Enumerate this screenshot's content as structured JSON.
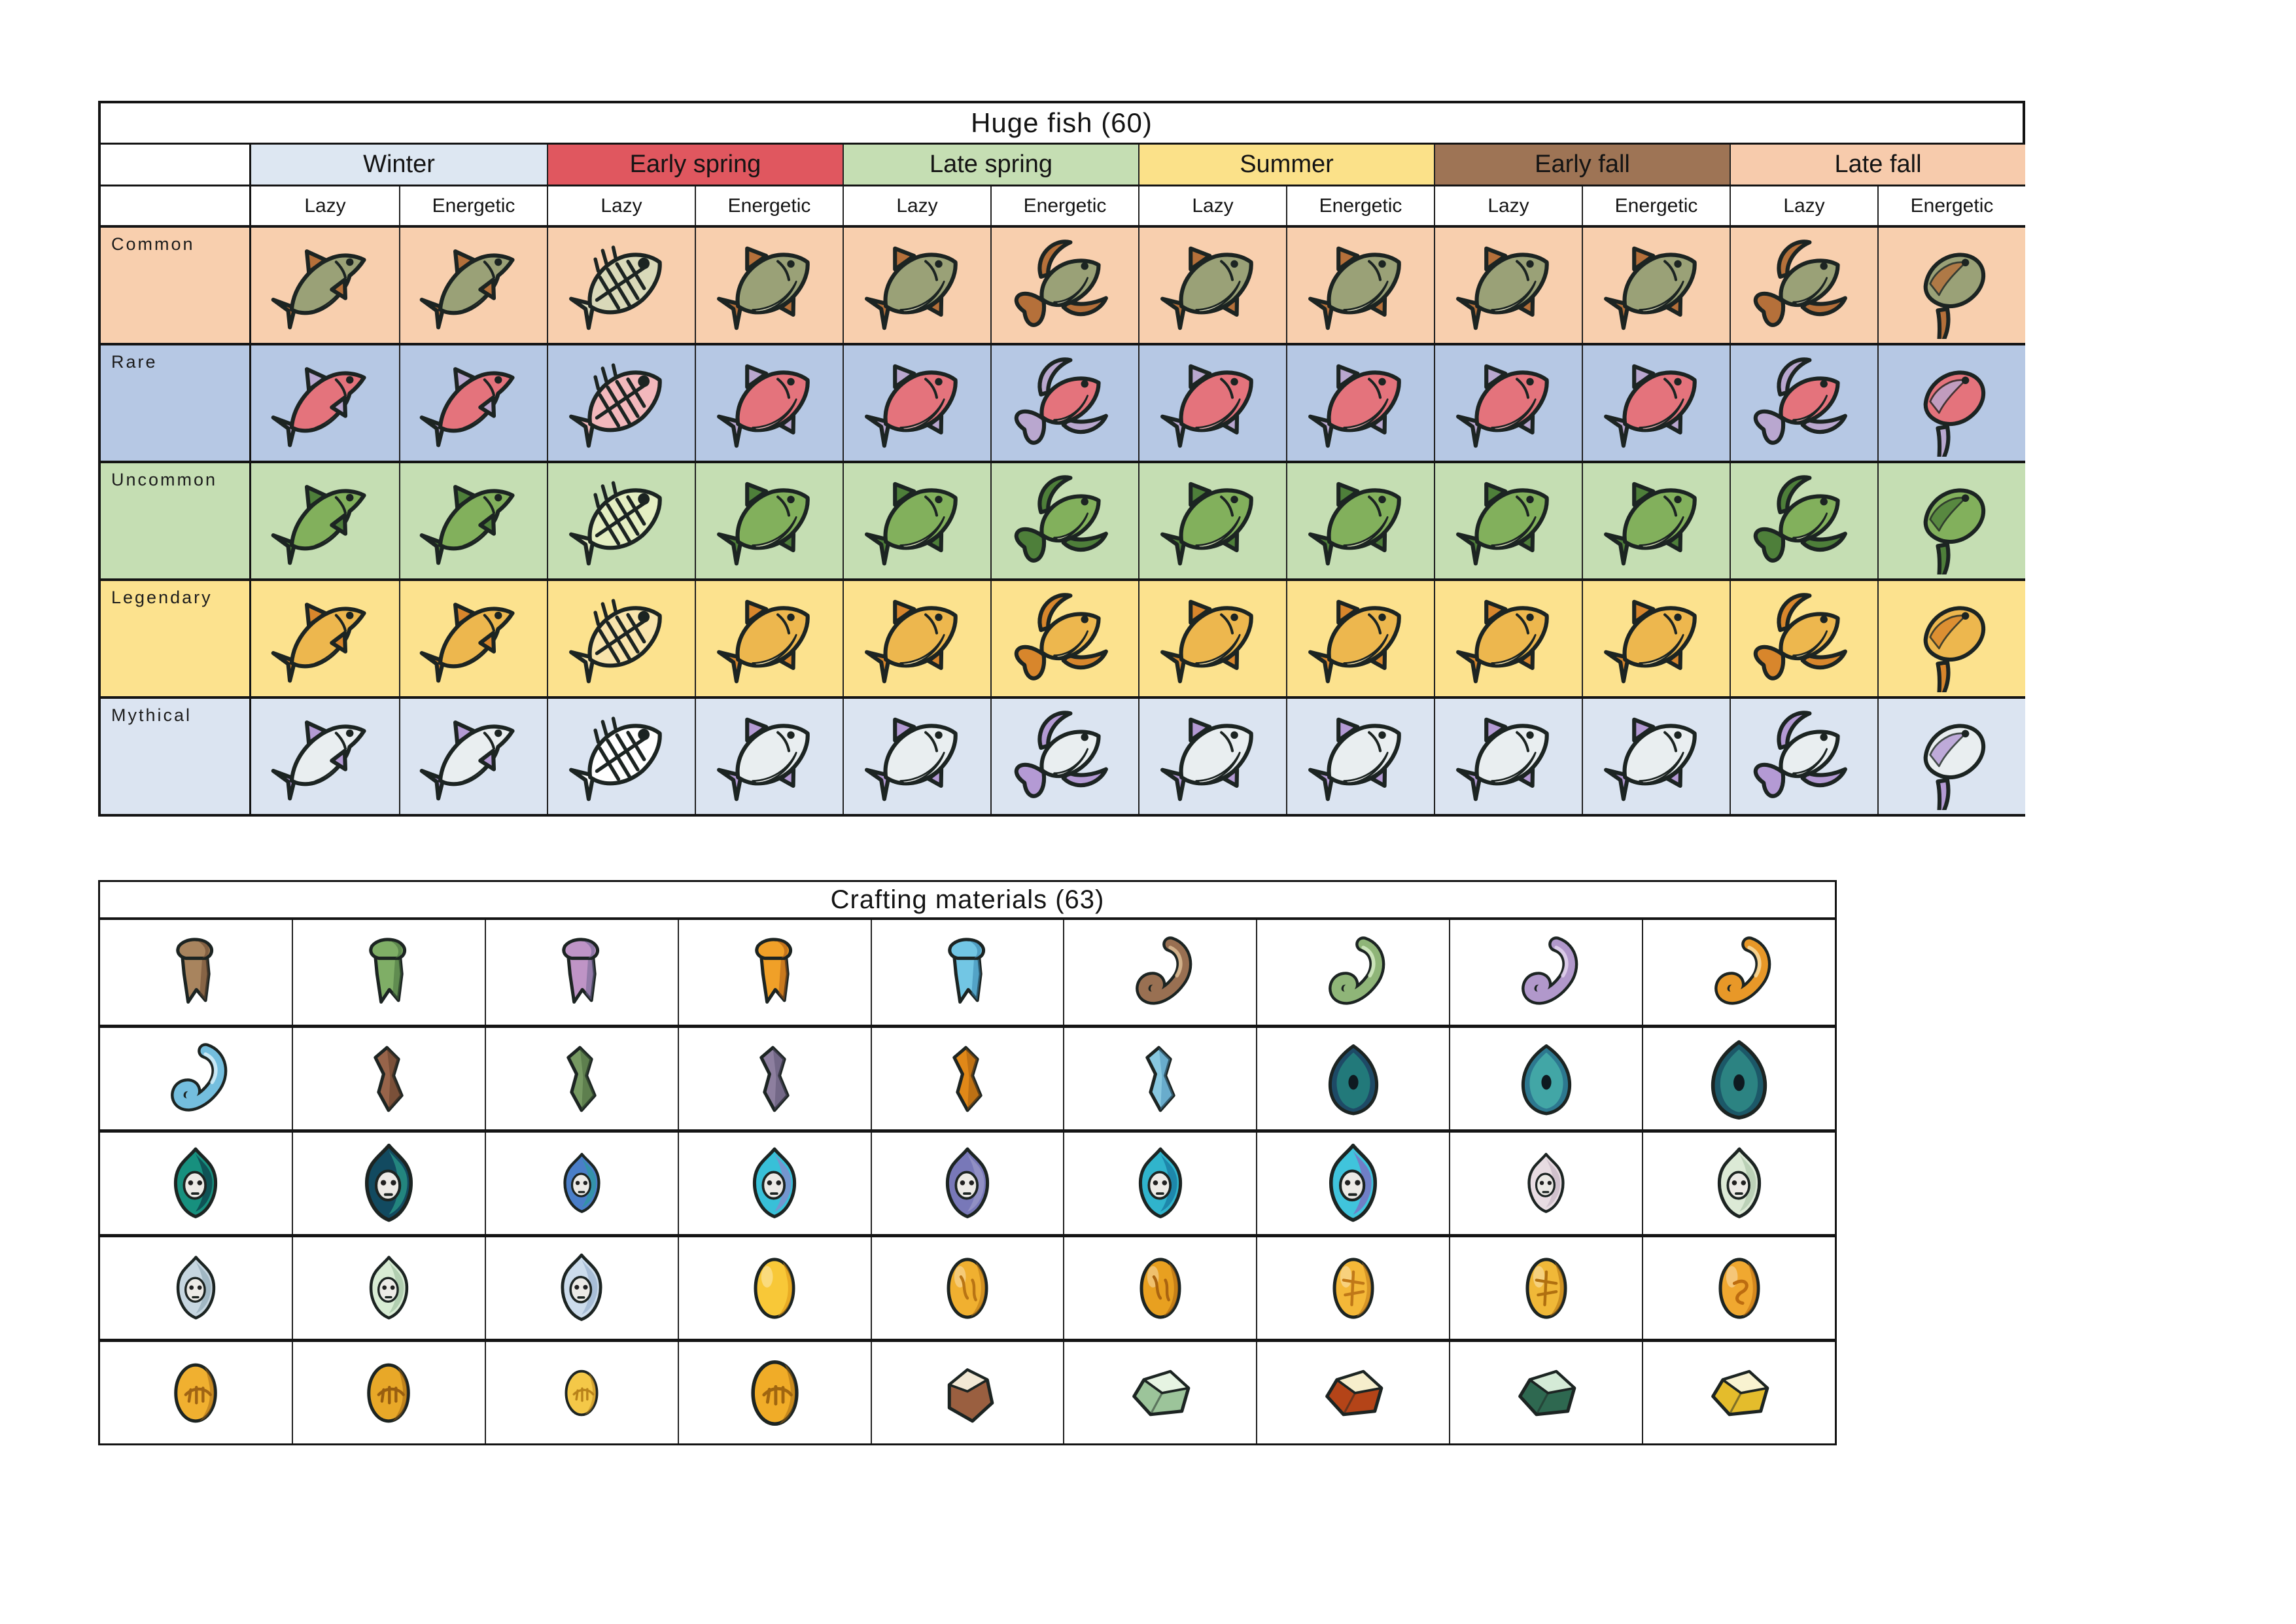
{
  "fish_table": {
    "title": "Huge fish (60)",
    "seasons": [
      {
        "label": "Winter",
        "color": "#dde7f2"
      },
      {
        "label": "Early spring",
        "color": "#e0575f"
      },
      {
        "label": "Late spring",
        "color": "#c5deb3"
      },
      {
        "label": "Summer",
        "color": "#fbe189"
      },
      {
        "label": "Early fall",
        "color": "#9e7455"
      },
      {
        "label": "Late fall",
        "color": "#f7cbac"
      }
    ],
    "trait_labels": [
      "Lazy",
      "Energetic"
    ],
    "column_fish_shapes": [
      "shark",
      "shark",
      "skeleton",
      "fish",
      "fish",
      "betta",
      "fish",
      "fish",
      "fish",
      "fish",
      "betta",
      "ray"
    ],
    "rarities": [
      {
        "label": "Common",
        "bg": "#f8cfae",
        "fish": {
          "body": "#9aa177",
          "fin": "#b5703a",
          "belly": "#d9d9b9"
        }
      },
      {
        "label": "Rare",
        "bg": "#b6c8e4",
        "fish": {
          "body": "#e4737c",
          "fin": "#b9a7cf",
          "belly": "#f2b8bc"
        }
      },
      {
        "label": "Uncommon",
        "bg": "#c5deb3",
        "fish": {
          "body": "#82b05c",
          "fin": "#4e7f3a",
          "belly": "#e4eec2"
        }
      },
      {
        "label": "Legendary",
        "bg": "#fce28e",
        "fish": {
          "body": "#edb74e",
          "fin": "#d8862c",
          "belly": "#f8e4ac"
        }
      },
      {
        "label": "Mythical",
        "bg": "#dbe4f1",
        "fish": {
          "body": "#e9eef0",
          "fin": "#b49ad4",
          "belly": "#ffffff"
        }
      }
    ]
  },
  "crafting_table": {
    "title": "Crafting materials (63)",
    "rows": [
      [
        {
          "type": "scroll",
          "name": "brown-scroll",
          "c1": "#a8845e",
          "c2": "#6b4a32"
        },
        {
          "type": "scroll",
          "name": "green-scroll",
          "c1": "#7fae66",
          "c2": "#47713e"
        },
        {
          "type": "scroll",
          "name": "purple-scroll",
          "c1": "#bf94c6",
          "c2": "#6e6490"
        },
        {
          "type": "scroll",
          "name": "orange-scroll",
          "c1": "#f0a028",
          "c2": "#aa5a16"
        },
        {
          "type": "scroll",
          "name": "blue-scroll",
          "c1": "#72c6e4",
          "c2": "#3a86ae"
        },
        {
          "type": "worm",
          "name": "brown-worm",
          "c1": "#997052",
          "c2": "#d8b890"
        },
        {
          "type": "worm",
          "name": "green-worm",
          "c1": "#8fb578",
          "c2": "#d0e8c0"
        },
        {
          "type": "worm",
          "name": "purple-worm",
          "c1": "#b198cb",
          "c2": "#e0d0ec"
        },
        {
          "type": "worm",
          "name": "orange-worm",
          "c1": "#e89828",
          "c2": "#f8d898"
        }
      ],
      [
        {
          "type": "worm",
          "name": "blue-worm",
          "c1": "#74bede",
          "c2": "#d0ecf8"
        },
        {
          "type": "hide",
          "name": "brown-hide",
          "c1": "#97644a",
          "c2": "#5e3c28"
        },
        {
          "type": "hide",
          "name": "green-hide",
          "c1": "#769962",
          "c2": "#46663a"
        },
        {
          "type": "hide",
          "name": "purple-hide",
          "c1": "#8d7f9f",
          "c2": "#5a5270"
        },
        {
          "type": "hide",
          "name": "orange-hide",
          "c1": "#e08818",
          "c2": "#9c5a10"
        },
        {
          "type": "hide",
          "name": "blue-hide",
          "c1": "#88c8e0",
          "c2": "#4a90b8"
        },
        {
          "type": "scale",
          "name": "navy-scale",
          "c1": "#1e4a66",
          "c2": "#27a08a"
        },
        {
          "type": "scale",
          "name": "teal-scale",
          "c1": "#2d7890",
          "c2": "#54ccb8"
        },
        {
          "type": "scale",
          "name": "deep-teal-scale",
          "c1": "#1c5868",
          "c2": "#3aa898",
          "s": 1.12
        }
      ],
      [
        {
          "type": "spirit",
          "name": "teal-spirit-scale",
          "c1": "#17907e",
          "c2": "#0d3f4a"
        },
        {
          "type": "spirit",
          "name": "navy-spirit-scale",
          "c1": "#124a60",
          "c2": "#2a9a88",
          "s": 1.1
        },
        {
          "type": "spirit",
          "name": "blue-spirit-scale",
          "c1": "#4a7ec8",
          "c2": "#2d9aa0",
          "s": 0.85
        },
        {
          "type": "spirit",
          "name": "cyan-spirit-scale",
          "c1": "#38c0d8",
          "c2": "#8888cc"
        },
        {
          "type": "spirit",
          "name": "violet-spirit-scale",
          "c1": "#7878b8",
          "c2": "#9a98c8"
        },
        {
          "type": "spirit",
          "name": "azure-spirit-scale",
          "c1": "#30b4cc",
          "c2": "#1878a0"
        },
        {
          "type": "spirit",
          "name": "purple-spirit-scale",
          "c1": "#40c4dc",
          "c2": "#8068c0",
          "s": 1.1
        },
        {
          "type": "spirit",
          "name": "pale-pink-spirit-scale",
          "c1": "#e8dce2",
          "c2": "#c8b8c4",
          "s": 0.85
        },
        {
          "type": "spirit",
          "name": "pale-green-spirit-scale",
          "c1": "#dcead6",
          "c2": "#b0c8ac"
        }
      ],
      [
        {
          "type": "spirit",
          "name": "pale-blue-spirit-scale",
          "c1": "#c6d6e0",
          "c2": "#94acba",
          "s": 0.9
        },
        {
          "type": "spirit",
          "name": "pale-mint-spirit-scale",
          "c1": "#d8ecd4",
          "c2": "#a4c4a4",
          "s": 0.9
        },
        {
          "type": "spirit",
          "name": "pale-sky-spirit-scale",
          "c1": "#ccdcec",
          "c2": "#9cb4d0",
          "s": 0.95
        },
        {
          "type": "egg",
          "deco": "none",
          "name": "golden-egg",
          "c1": "#f8c838",
          "c2": "#dc9414"
        },
        {
          "type": "egg",
          "deco": "marks",
          "name": "patterned-golden-egg",
          "c1": "#f0b030",
          "c2": "#b87414"
        },
        {
          "type": "egg",
          "deco": "marks",
          "name": "amber-egg",
          "c1": "#e8a020",
          "c2": "#aa6410"
        },
        {
          "type": "egg",
          "deco": "web",
          "name": "veined-golden-egg",
          "c1": "#f4b838",
          "c2": "#c07818"
        },
        {
          "type": "egg",
          "deco": "web",
          "name": "cracked-golden-egg",
          "c1": "#f0b838",
          "c2": "#b07010"
        },
        {
          "type": "egg",
          "deco": "swirl",
          "name": "swirled-golden-egg",
          "c1": "#f0a830",
          "c2": "#bc6c10"
        }
      ],
      [
        {
          "type": "fossil",
          "name": "amber-fossil-egg",
          "c1": "#f0b030",
          "c2": "#a06414"
        },
        {
          "type": "fossil",
          "name": "amber-fossil-egg",
          "c1": "#e8a828",
          "c2": "#985e10"
        },
        {
          "type": "fossil",
          "name": "small-amber-fossil",
          "c1": "#f4c848",
          "c2": "#b8821a",
          "s": 0.78
        },
        {
          "type": "fossil",
          "name": "large-amber-fossil",
          "c1": "#f0ac28",
          "c2": "#a06610",
          "s": 1.1
        },
        {
          "type": "stone",
          "name": "brown-white-stone",
          "c1": "#9a5f40",
          "c2": "#f2e8d4"
        },
        {
          "type": "gem",
          "name": "green-gem",
          "c1": "#9cc49a",
          "c2": "#e6f4e2"
        },
        {
          "type": "gem",
          "name": "red-orange-gem",
          "c1": "#b44418",
          "c2": "#f6eecc"
        },
        {
          "type": "gem",
          "name": "dark-green-gem",
          "c1": "#2e6850",
          "c2": "#d4ead6"
        },
        {
          "type": "gem",
          "name": "yellow-gem",
          "c1": "#e4bc2c",
          "c2": "#f8f2d0"
        }
      ]
    ]
  }
}
